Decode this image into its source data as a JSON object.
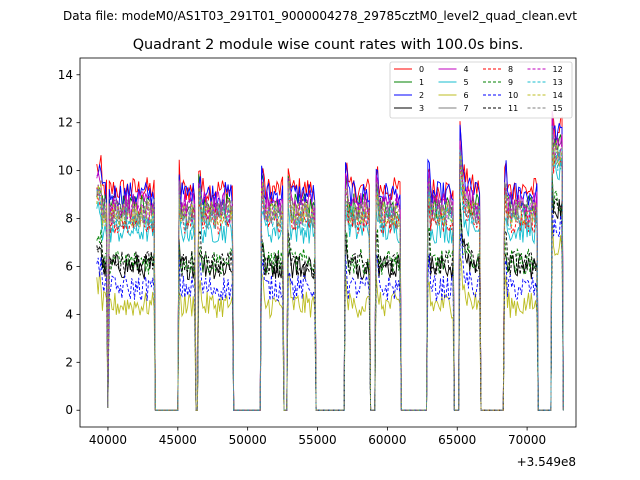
{
  "suptitle": "Data file: modeM0/AS1T03_291T01_9000004278_29785cztM0_level2_quad_clean.evt",
  "chart_data": {
    "type": "line",
    "title": "Quadrant 2 module wise count rates with 100.0s bins.",
    "xlabel": "",
    "ylabel": "",
    "xlim": [
      38000,
      73500
    ],
    "ylim": [
      -0.7,
      14.7
    ],
    "x_offset_label": "+3.549e8",
    "x_ticks": [
      40000,
      45000,
      50000,
      55000,
      60000,
      65000,
      70000
    ],
    "y_ticks": [
      0,
      2,
      4,
      6,
      8,
      10,
      12,
      14
    ],
    "legend_location": "upper right",
    "on_intervals": [
      [
        39200,
        43300
      ],
      [
        45100,
        46200
      ],
      [
        46500,
        48900
      ],
      [
        51000,
        52500
      ],
      [
        52900,
        54800
      ],
      [
        57000,
        58700
      ],
      [
        59200,
        60900
      ],
      [
        62900,
        64700
      ],
      [
        65200,
        66600
      ],
      [
        68400,
        70700
      ],
      [
        71800,
        72500
      ]
    ],
    "base_rates": [
      9.2,
      8.5,
      9.0,
      6.0,
      8.6,
      7.5,
      4.4,
      8.1,
      7.9,
      6.2,
      5.1,
      6.1,
      8.3,
      8.0,
      8.2,
      8.3
    ],
    "series": [
      {
        "name": "0",
        "color": "#ff0000",
        "style": "solid"
      },
      {
        "name": "1",
        "color": "#008000",
        "style": "solid"
      },
      {
        "name": "2",
        "color": "#0000ff",
        "style": "solid"
      },
      {
        "name": "3",
        "color": "#000000",
        "style": "solid"
      },
      {
        "name": "4",
        "color": "#bf00bf",
        "style": "solid"
      },
      {
        "name": "5",
        "color": "#17becf",
        "style": "solid"
      },
      {
        "name": "6",
        "color": "#bcbd22",
        "style": "solid"
      },
      {
        "name": "7",
        "color": "#7f7f7f",
        "style": "solid"
      },
      {
        "name": "8",
        "color": "#ff0000",
        "style": "dashed"
      },
      {
        "name": "9",
        "color": "#008000",
        "style": "dashed"
      },
      {
        "name": "10",
        "color": "#0000ff",
        "style": "dashed"
      },
      {
        "name": "11",
        "color": "#000000",
        "style": "dashed"
      },
      {
        "name": "12",
        "color": "#bf00bf",
        "style": "dashed"
      },
      {
        "name": "13",
        "color": "#17becf",
        "style": "dashed"
      },
      {
        "name": "14",
        "color": "#bcbd22",
        "style": "dashed"
      },
      {
        "name": "15",
        "color": "#7f7f7f",
        "style": "dashed"
      }
    ]
  }
}
